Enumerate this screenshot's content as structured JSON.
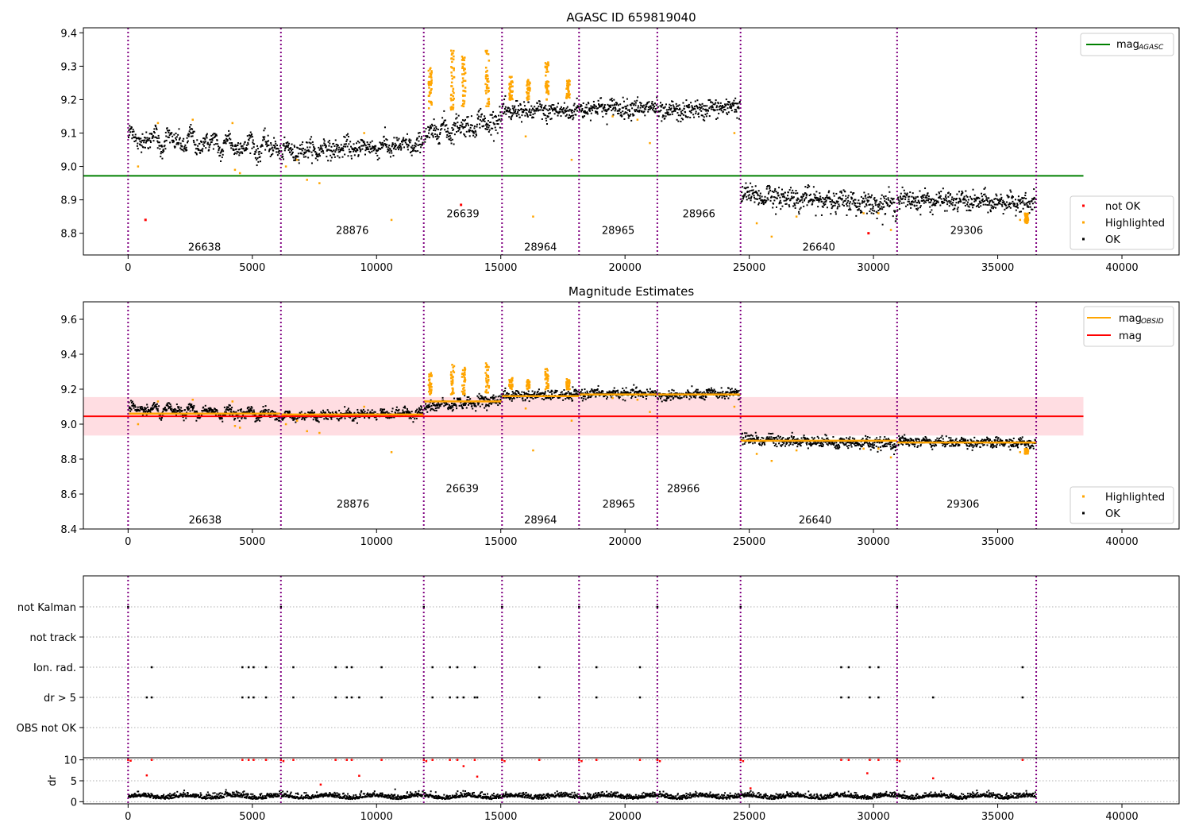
{
  "figure_title": "AGASC ID 659819040",
  "chart_data": [
    {
      "id": "top",
      "type": "scatter",
      "title": "AGASC ID 659819040",
      "xlim": [
        -1800,
        42300
      ],
      "ylim": [
        8.735,
        9.415
      ],
      "xticks": [
        0,
        5000,
        10000,
        15000,
        20000,
        25000,
        30000,
        35000,
        40000
      ],
      "yticks": [
        8.8,
        8.9,
        9.0,
        9.1,
        9.2,
        9.3,
        9.4
      ],
      "ytick_labels": [
        "8.8",
        "8.9",
        "9.0",
        "9.1",
        "9.2",
        "9.3",
        "9.4"
      ],
      "hline": {
        "name": "mag_AGASC",
        "y": 8.972,
        "x_range": [
          -1800,
          38450
        ],
        "color": "#008000"
      },
      "legend_top": {
        "placement": "top-right",
        "entries": [
          {
            "base": "mag",
            "sub": "AGASC",
            "color": "#008000",
            "kind": "line"
          }
        ]
      },
      "legend_bottom": {
        "placement": "lower-right",
        "entries": [
          {
            "label": "not OK",
            "color": "#ff0000",
            "kind": "dot"
          },
          {
            "label": "Highlighted",
            "color": "#ffa500",
            "kind": "dot"
          },
          {
            "label": "OK",
            "color": "#000000",
            "kind": "dot"
          }
        ]
      },
      "segments": [
        {
          "start": 0,
          "end": 6150,
          "obsid": "26638",
          "level": 9.07,
          "amp": 0.03,
          "spread": 0.03,
          "label_y": 8.76,
          "trend": -0.03
        },
        {
          "start": 6150,
          "end": 11900,
          "obsid": "28876",
          "level": 9.055,
          "amp": 0.015,
          "spread": 0.03,
          "label_y": 8.81,
          "trend": 0.02
        },
        {
          "start": 11900,
          "end": 15050,
          "obsid": "26639",
          "level": 9.12,
          "amp": 0.02,
          "spread": 0.035,
          "label_y": 8.86,
          "trend": 0.04
        },
        {
          "start": 15050,
          "end": 18150,
          "obsid": "28964",
          "level": 9.165,
          "amp": 0.01,
          "spread": 0.03,
          "label_y": 8.76,
          "trend": 0.0
        },
        {
          "start": 18150,
          "end": 21300,
          "obsid": "28965",
          "level": 9.175,
          "amp": 0.01,
          "spread": 0.03,
          "label_y": 8.81,
          "trend": 0.0
        },
        {
          "start": 21300,
          "end": 24650,
          "obsid": "28966",
          "level": 9.17,
          "amp": 0.01,
          "spread": 0.03,
          "label_y": 8.86,
          "trend": 0.02
        },
        {
          "start": 24650,
          "end": 30950,
          "obsid": "26640",
          "level": 8.9,
          "amp": 0.015,
          "spread": 0.035,
          "label_y": 8.76,
          "trend": -0.03
        },
        {
          "start": 30950,
          "end": 36550,
          "obsid": "29306",
          "level": 8.895,
          "amp": 0.01,
          "spread": 0.03,
          "label_y": 8.81,
          "trend": -0.01
        }
      ],
      "vlines": [
        0,
        6150,
        11900,
        15050,
        18150,
        21300,
        24650,
        30950,
        36550
      ],
      "highlight_spikes": [
        {
          "x": 12150,
          "y0": 9.17,
          "y1": 9.3
        },
        {
          "x": 13050,
          "y0": 9.17,
          "y1": 9.35
        },
        {
          "x": 13500,
          "y0": 9.17,
          "y1": 9.33
        },
        {
          "x": 14450,
          "y0": 9.18,
          "y1": 9.35
        },
        {
          "x": 15400,
          "y0": 9.2,
          "y1": 9.27
        },
        {
          "x": 16100,
          "y0": 9.2,
          "y1": 9.26
        },
        {
          "x": 16850,
          "y0": 9.2,
          "y1": 9.32
        },
        {
          "x": 17700,
          "y0": 9.2,
          "y1": 9.26
        },
        {
          "x": 36150,
          "y0": 8.83,
          "y1": 8.86
        }
      ],
      "highlight_points": [
        [
          400,
          9.0
        ],
        [
          1200,
          9.13
        ],
        [
          2600,
          9.14
        ],
        [
          4200,
          9.13
        ],
        [
          4300,
          8.99
        ],
        [
          4500,
          8.98
        ],
        [
          6350,
          9.0
        ],
        [
          6800,
          9.02
        ],
        [
          7200,
          8.96
        ],
        [
          7700,
          8.95
        ],
        [
          9500,
          9.1
        ],
        [
          10600,
          8.84
        ],
        [
          16300,
          8.85
        ],
        [
          16000,
          9.09
        ],
        [
          17850,
          9.02
        ],
        [
          19500,
          9.15
        ],
        [
          20500,
          9.14
        ],
        [
          21000,
          9.07
        ],
        [
          24400,
          9.1
        ],
        [
          25300,
          8.83
        ],
        [
          25900,
          8.79
        ],
        [
          26900,
          8.85
        ],
        [
          29600,
          8.86
        ],
        [
          30200,
          8.86
        ],
        [
          30700,
          8.81
        ],
        [
          35900,
          8.84
        ]
      ],
      "notok_points": [
        [
          700,
          8.84
        ],
        [
          13400,
          8.885
        ],
        [
          29800,
          8.8
        ]
      ],
      "xlabel": "",
      "ylabel": ""
    },
    {
      "id": "middle",
      "type": "scatter",
      "title": "Magnitude Estimates",
      "xlim": [
        -1800,
        42300
      ],
      "ylim": [
        8.4,
        9.7
      ],
      "xticks": [
        0,
        5000,
        10000,
        15000,
        20000,
        25000,
        30000,
        35000,
        40000
      ],
      "yticks": [
        8.4,
        8.6,
        8.8,
        9.0,
        9.2,
        9.4,
        9.6
      ],
      "ytick_labels": [
        "8.4",
        "8.6",
        "8.8",
        "9.0",
        "9.2",
        "9.4",
        "9.6"
      ],
      "mag_line": {
        "name": "mag",
        "y": 9.045,
        "band": [
          8.935,
          9.155
        ],
        "x_range": [
          -1800,
          38450
        ],
        "color": "#ff0000",
        "band_color": "#ffdde2"
      },
      "obsid_mags": [
        {
          "start": 0,
          "end": 6150,
          "mag": 9.06
        },
        {
          "start": 6150,
          "end": 11900,
          "mag": 9.055
        },
        {
          "start": 11900,
          "end": 15050,
          "mag": 9.13
        },
        {
          "start": 15050,
          "end": 18150,
          "mag": 9.16
        },
        {
          "start": 18150,
          "end": 21300,
          "mag": 9.17
        },
        {
          "start": 21300,
          "end": 24650,
          "mag": 9.17
        },
        {
          "start": 24650,
          "end": 30950,
          "mag": 8.905
        },
        {
          "start": 30950,
          "end": 36550,
          "mag": 8.895
        }
      ],
      "obsid_labels": [
        {
          "x": 3100,
          "y": 8.455,
          "text": "26638"
        },
        {
          "x": 9050,
          "y": 8.545,
          "text": "28876"
        },
        {
          "x": 13450,
          "y": 8.635,
          "text": "26639"
        },
        {
          "x": 16600,
          "y": 8.455,
          "text": "28964"
        },
        {
          "x": 19750,
          "y": 8.545,
          "text": "28965"
        },
        {
          "x": 22350,
          "y": 8.635,
          "text": "28966"
        },
        {
          "x": 27650,
          "y": 8.455,
          "text": "26640"
        },
        {
          "x": 33600,
          "y": 8.545,
          "text": "29306"
        }
      ],
      "legend_top": {
        "placement": "top-right",
        "entries": [
          {
            "base": "mag",
            "sub": "OBSID",
            "color": "#ffa500",
            "kind": "line"
          },
          {
            "base": "mag",
            "sub": "",
            "color": "#ff0000",
            "kind": "line"
          }
        ]
      },
      "legend_bottom": {
        "placement": "lower-right",
        "entries": [
          {
            "label": "Highlighted",
            "color": "#ffa500",
            "kind": "dot"
          },
          {
            "label": "OK",
            "color": "#000000",
            "kind": "dot"
          }
        ]
      },
      "xlabel": "",
      "ylabel": ""
    },
    {
      "id": "flags",
      "type": "scatter",
      "categories": [
        "not Kalman",
        "not track",
        "Ion. rad.",
        "dr > 5",
        "OBS not OK"
      ],
      "xlim": [
        -1800,
        42300
      ],
      "flag_points": {
        "not Kalman": [
          0,
          6150,
          11900,
          15050,
          18150,
          21300,
          24650,
          30950
        ],
        "not track": [],
        "Ion. rad.": [
          950,
          4600,
          4850,
          5050,
          5550,
          6650,
          8350,
          8800,
          9000,
          10200,
          12250,
          12950,
          13250,
          13950,
          16550,
          18850,
          20600,
          28700,
          29000,
          29850,
          30200,
          36000
        ],
        "dr > 5": [
          750,
          950,
          4600,
          4850,
          5050,
          5550,
          6650,
          8350,
          8800,
          9000,
          9300,
          10200,
          12250,
          12950,
          13250,
          13500,
          13950,
          14050,
          16550,
          18850,
          20600,
          28700,
          29000,
          29850,
          30200,
          32400,
          36000
        ],
        "OBS not OK": []
      },
      "xlabel": "",
      "ylabel": ""
    },
    {
      "id": "dr",
      "type": "scatter",
      "ylabel": "dr",
      "xlim": [
        -1800,
        42300
      ],
      "ylim": [
        -0.5,
        10.5
      ],
      "xticks": [
        0,
        5000,
        10000,
        15000,
        20000,
        25000,
        30000,
        35000,
        40000
      ],
      "yticks": [
        0,
        5,
        10
      ],
      "ytick_labels": [
        "0",
        "5",
        "10"
      ],
      "red_points": [
        [
          0,
          10
        ],
        [
          100,
          9.8
        ],
        [
          750,
          6.3
        ],
        [
          950,
          10
        ],
        [
          4600,
          10
        ],
        [
          4850,
          10
        ],
        [
          5050,
          10
        ],
        [
          5550,
          10
        ],
        [
          6150,
          10
        ],
        [
          6250,
          9.7
        ],
        [
          6650,
          10
        ],
        [
          7750,
          4.1
        ],
        [
          8350,
          10
        ],
        [
          8800,
          10
        ],
        [
          9000,
          10
        ],
        [
          9300,
          6.2
        ],
        [
          10200,
          10
        ],
        [
          11900,
          10
        ],
        [
          12000,
          9.7
        ],
        [
          12250,
          10
        ],
        [
          12950,
          10
        ],
        [
          13250,
          10
        ],
        [
          13500,
          8.5
        ],
        [
          13950,
          10
        ],
        [
          14050,
          6.0
        ],
        [
          15050,
          10
        ],
        [
          15150,
          9.7
        ],
        [
          16550,
          10
        ],
        [
          18150,
          10
        ],
        [
          18250,
          9.7
        ],
        [
          18850,
          10
        ],
        [
          20600,
          10
        ],
        [
          21300,
          10
        ],
        [
          21400,
          9.7
        ],
        [
          24650,
          10
        ],
        [
          24750,
          9.7
        ],
        [
          25050,
          3.2
        ],
        [
          28700,
          10
        ],
        [
          29000,
          10
        ],
        [
          29750,
          6.8
        ],
        [
          29850,
          10
        ],
        [
          30200,
          10
        ],
        [
          30950,
          10
        ],
        [
          31050,
          9.7
        ],
        [
          32400,
          5.6
        ],
        [
          36000,
          10
        ]
      ],
      "xlabel": ""
    }
  ]
}
